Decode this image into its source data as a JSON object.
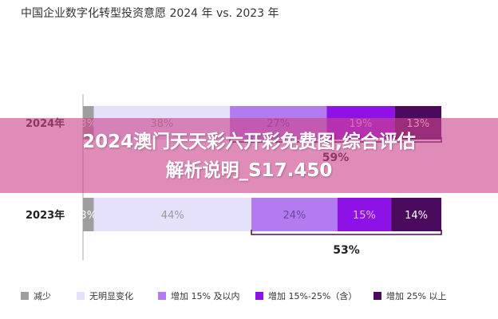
{
  "chart_data": {
    "type": "bar",
    "orientation": "horizontal",
    "stacked": true,
    "title": "中国企业数字化转型投资意愿 2024 年 vs. 2023 年",
    "categories": [
      "2024年",
      "2023年"
    ],
    "series": [
      {
        "name": "减少",
        "color": "#9e9e9e",
        "values": [
          3,
          3
        ],
        "labels": [
          "3%",
          "3%"
        ]
      },
      {
        "name": "无明显变化",
        "color": "#e5e1fb",
        "values": [
          38,
          44
        ],
        "labels": [
          "38%",
          "44%"
        ]
      },
      {
        "name": "增加 15% 及以内",
        "color": "#b47bf0",
        "values": [
          27,
          24
        ],
        "labels": [
          "27%",
          "24%"
        ]
      },
      {
        "name": "增加 15%-25%（含）",
        "color": "#8e12e6",
        "values": [
          19,
          15
        ],
        "labels": [
          "19%",
          "15%"
        ]
      },
      {
        "name": "增加 25% 以上",
        "color": "#4a0a5e",
        "values": [
          13,
          14
        ],
        "labels": [
          "13%",
          "14%"
        ]
      }
    ],
    "bracket_totals": [
      "59%",
      "53%"
    ],
    "legend_position": "bottom",
    "grid": false
  },
  "overlay": {
    "line1": "2024澳门天天彩六开彩免费图,综合评估",
    "line2": "解析说明_S17.450"
  }
}
